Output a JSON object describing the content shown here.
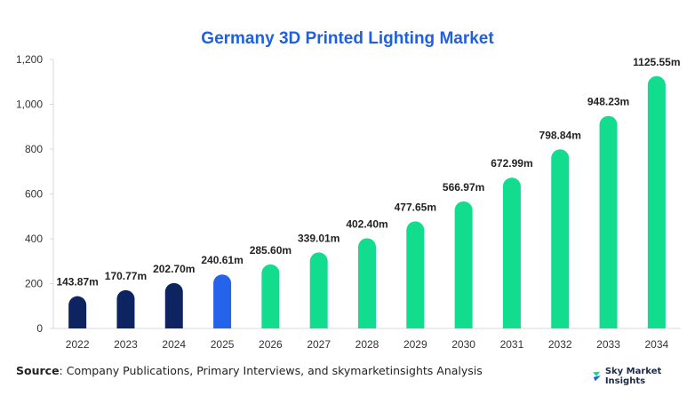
{
  "chart_data": {
    "type": "bar",
    "title": "Germany 3D Printed Lighting Market",
    "categories": [
      "2022",
      "2023",
      "2024",
      "2025",
      "2026",
      "2027",
      "2028",
      "2029",
      "2030",
      "2031",
      "2032",
      "2033",
      "2034"
    ],
    "values": [
      143.87,
      170.77,
      202.7,
      240.61,
      285.6,
      339.01,
      402.4,
      477.65,
      566.97,
      672.99,
      798.84,
      948.23,
      1125.55
    ],
    "value_labels": [
      "143.87m",
      "170.77m",
      "202.70m",
      "240.61m",
      "285.60m",
      "339.01m",
      "402.40m",
      "477.65m",
      "566.97m",
      "672.99m",
      "798.84m",
      "948.23m",
      "1125.55m"
    ],
    "bar_colors": [
      "#0d2461",
      "#0d2461",
      "#0d2461",
      "#2563eb",
      "#12dc8e",
      "#12dc8e",
      "#12dc8e",
      "#12dc8e",
      "#12dc8e",
      "#12dc8e",
      "#12dc8e",
      "#12dc8e",
      "#12dc8e"
    ],
    "yticks": [
      0,
      200,
      400,
      600,
      800,
      1000,
      1200
    ],
    "ytick_labels": [
      "0",
      "200",
      "400",
      "600",
      "800",
      "1,000",
      "1,200"
    ],
    "ylim": [
      0,
      1200
    ],
    "xlabel": "",
    "ylabel": "",
    "grid": false
  },
  "footer": {
    "source_prefix": "Source",
    "source_text": ": Company Publications, Primary Interviews, and skymarketinsights Analysis",
    "brand": "Sky Market Insights"
  }
}
